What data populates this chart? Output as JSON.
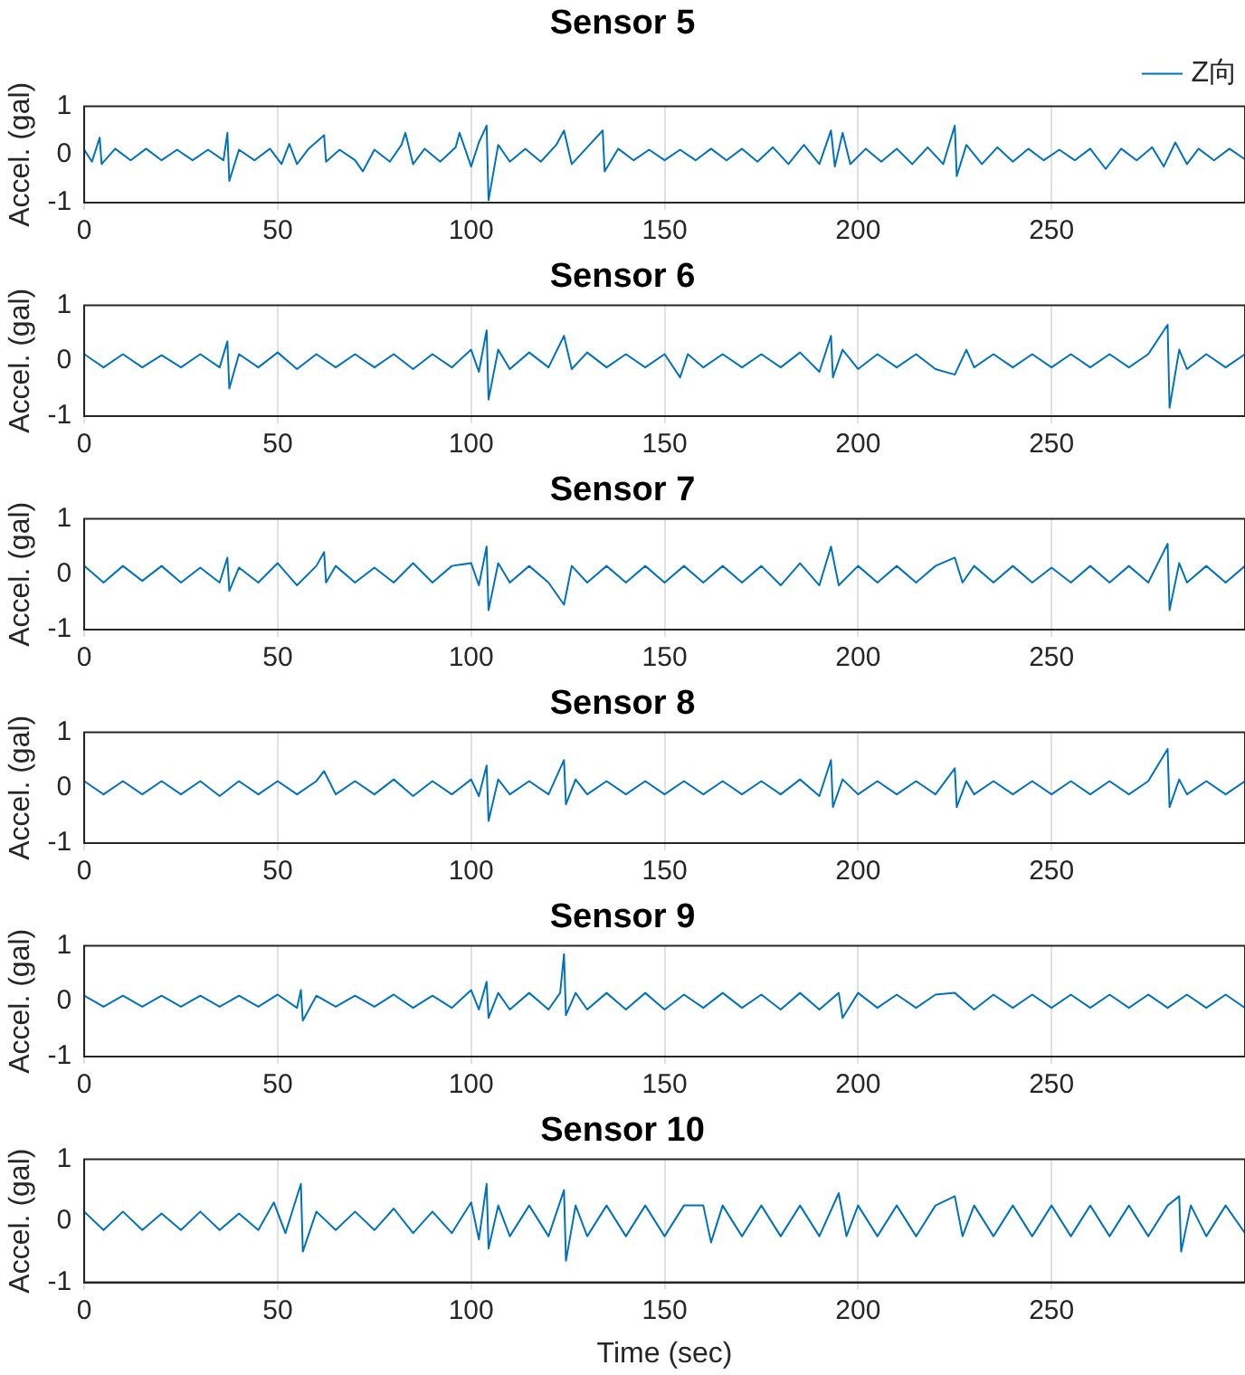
{
  "chart_data": [
    {
      "type": "line",
      "title": "Sensor 5",
      "ylabel": "Accel. (gal)",
      "xlim": [
        0,
        300
      ],
      "ylim": [
        -1,
        1
      ],
      "xticks": [
        0,
        50,
        100,
        150,
        200,
        250
      ],
      "yticks": [
        -1,
        0,
        1
      ],
      "grid": "x",
      "legend": "top right",
      "x": [
        0,
        2,
        4,
        4.5,
        8,
        12,
        16,
        20,
        24,
        28,
        32,
        36,
        37,
        37.5,
        40,
        44,
        48,
        51,
        53,
        55,
        58,
        62,
        62.5,
        66,
        70,
        72,
        75,
        79,
        82,
        83,
        85,
        88,
        92,
        96,
        97,
        100,
        102,
        104,
        104.5,
        107,
        110,
        114,
        118,
        122,
        124,
        126,
        130,
        134,
        134.5,
        138,
        142,
        146,
        150,
        154,
        158,
        162,
        166,
        170,
        174,
        178,
        182,
        186,
        190,
        193,
        194,
        196,
        198,
        202,
        206,
        210,
        214,
        218,
        222,
        225,
        225.5,
        228,
        232,
        236,
        240,
        244,
        248,
        252,
        256,
        260,
        264,
        268,
        272,
        276,
        279,
        282,
        285,
        288,
        292,
        296,
        300
      ],
      "series": [
        {
          "name": "Z向",
          "color": "#0072bd",
          "values": [
            0.1,
            -0.15,
            0.35,
            -0.2,
            0.12,
            -0.12,
            0.12,
            -0.12,
            0.1,
            -0.12,
            0.1,
            -0.12,
            0.45,
            -0.55,
            0.1,
            -0.12,
            0.12,
            -0.2,
            0.22,
            -0.2,
            0.12,
            0.4,
            -0.15,
            0.1,
            -0.12,
            -0.35,
            0.1,
            -0.15,
            0.2,
            0.45,
            -0.2,
            0.12,
            -0.15,
            0.15,
            0.45,
            -0.25,
            0.25,
            0.6,
            -0.95,
            0.2,
            -0.15,
            0.12,
            -0.15,
            0.2,
            0.5,
            -0.2,
            0.15,
            0.5,
            -0.35,
            0.12,
            -0.12,
            0.1,
            -0.12,
            0.1,
            -0.12,
            0.12,
            -0.12,
            0.12,
            -0.15,
            0.15,
            -0.2,
            0.2,
            -0.2,
            0.5,
            -0.25,
            0.45,
            -0.2,
            0.12,
            -0.15,
            0.12,
            -0.2,
            0.15,
            -0.2,
            0.6,
            -0.45,
            0.2,
            -0.2,
            0.15,
            -0.15,
            0.12,
            -0.12,
            0.1,
            -0.12,
            0.12,
            -0.3,
            0.12,
            -0.12,
            0.15,
            -0.25,
            0.25,
            -0.2,
            0.12,
            -0.12,
            0.12,
            -0.1
          ]
        }
      ]
    },
    {
      "type": "line",
      "title": "Sensor 6",
      "ylabel": "Accel. (gal)",
      "xlim": [
        0,
        300
      ],
      "ylim": [
        -1,
        1
      ],
      "xticks": [
        0,
        50,
        100,
        150,
        200,
        250
      ],
      "yticks": [
        -1,
        0,
        1
      ],
      "grid": "x",
      "x": [
        0,
        5,
        10,
        15,
        20,
        25,
        30,
        35,
        37,
        37.5,
        40,
        45,
        50,
        55,
        60,
        65,
        70,
        75,
        80,
        85,
        90,
        95,
        100,
        102,
        104,
        104.5,
        107,
        110,
        115,
        120,
        124,
        126,
        130,
        135,
        140,
        145,
        150,
        154,
        156,
        160,
        165,
        170,
        175,
        180,
        185,
        190,
        193,
        193.5,
        196,
        200,
        205,
        210,
        215,
        220,
        225,
        228,
        230,
        235,
        240,
        245,
        250,
        255,
        260,
        265,
        270,
        275,
        280,
        280.5,
        283,
        285,
        290,
        295,
        300
      ],
      "series": [
        {
          "color": "#0072bd",
          "values": [
            0.12,
            -0.12,
            0.12,
            -0.12,
            0.1,
            -0.12,
            0.12,
            -0.12,
            0.35,
            -0.5,
            0.12,
            -0.12,
            0.15,
            -0.15,
            0.12,
            -0.12,
            0.12,
            -0.12,
            0.12,
            -0.15,
            0.12,
            -0.12,
            0.2,
            -0.2,
            0.55,
            -0.7,
            0.2,
            -0.15,
            0.15,
            -0.12,
            0.45,
            -0.15,
            0.15,
            -0.12,
            0.12,
            -0.12,
            0.12,
            -0.3,
            0.12,
            -0.12,
            0.12,
            -0.12,
            0.12,
            -0.12,
            0.15,
            -0.2,
            0.45,
            -0.3,
            0.2,
            -0.15,
            0.12,
            -0.12,
            0.12,
            -0.15,
            -0.25,
            0.2,
            -0.12,
            0.12,
            -0.12,
            0.12,
            -0.12,
            0.12,
            -0.12,
            0.12,
            -0.12,
            0.12,
            0.65,
            -0.85,
            0.2,
            -0.15,
            0.12,
            -0.12,
            0.12
          ]
        }
      ]
    },
    {
      "type": "line",
      "title": "Sensor 7",
      "ylabel": "Accel. (gal)",
      "xlim": [
        0,
        300
      ],
      "ylim": [
        -1,
        1
      ],
      "xticks": [
        0,
        50,
        100,
        150,
        200,
        250
      ],
      "yticks": [
        -1,
        0,
        1
      ],
      "grid": "x",
      "x": [
        0,
        5,
        10,
        15,
        20,
        25,
        30,
        35,
        37,
        37.5,
        40,
        45,
        50,
        55,
        60,
        62,
        62.5,
        65,
        70,
        75,
        80,
        85,
        90,
        95,
        100,
        102,
        104,
        104.5,
        107,
        110,
        115,
        120,
        124,
        126,
        130,
        135,
        140,
        145,
        150,
        155,
        160,
        165,
        170,
        175,
        180,
        185,
        190,
        193,
        195,
        200,
        205,
        210,
        215,
        220,
        225,
        227,
        230,
        235,
        240,
        245,
        250,
        255,
        260,
        265,
        270,
        275,
        280,
        280.5,
        283,
        285,
        290,
        295,
        300
      ],
      "series": [
        {
          "color": "#0072bd",
          "values": [
            0.15,
            -0.15,
            0.15,
            -0.12,
            0.15,
            -0.15,
            0.12,
            -0.15,
            0.3,
            -0.3,
            0.12,
            -0.15,
            0.2,
            -0.2,
            0.15,
            0.4,
            -0.15,
            0.15,
            -0.15,
            0.12,
            -0.15,
            0.2,
            -0.15,
            0.15,
            0.2,
            -0.2,
            0.5,
            -0.65,
            0.2,
            -0.15,
            0.15,
            -0.15,
            -0.55,
            0.15,
            -0.15,
            0.15,
            -0.15,
            0.15,
            -0.15,
            0.15,
            -0.15,
            0.15,
            -0.15,
            0.15,
            -0.2,
            0.2,
            -0.2,
            0.5,
            -0.2,
            0.15,
            -0.15,
            0.15,
            -0.15,
            0.15,
            0.3,
            -0.15,
            0.15,
            -0.15,
            0.15,
            -0.15,
            0.12,
            -0.15,
            0.15,
            -0.15,
            0.15,
            -0.15,
            0.55,
            -0.65,
            0.2,
            -0.15,
            0.15,
            -0.15,
            0.15
          ]
        }
      ]
    },
    {
      "type": "line",
      "title": "Sensor 8",
      "ylabel": "Accel. (gal)",
      "xlim": [
        0,
        300
      ],
      "ylim": [
        -1,
        1
      ],
      "xticks": [
        0,
        50,
        100,
        150,
        200,
        250
      ],
      "yticks": [
        -1,
        0,
        1
      ],
      "grid": "x",
      "x": [
        0,
        5,
        10,
        15,
        20,
        25,
        30,
        35,
        40,
        45,
        50,
        55,
        60,
        62,
        65,
        70,
        75,
        80,
        85,
        90,
        95,
        100,
        102,
        104,
        104.5,
        107,
        110,
        115,
        120,
        124,
        124.5,
        127,
        130,
        135,
        140,
        145,
        150,
        155,
        160,
        165,
        170,
        175,
        180,
        185,
        190,
        193,
        193.5,
        196,
        200,
        205,
        210,
        215,
        220,
        225,
        225.5,
        228,
        230,
        235,
        240,
        245,
        250,
        255,
        260,
        265,
        270,
        275,
        280,
        280.5,
        283,
        285,
        290,
        295,
        300
      ],
      "series": [
        {
          "color": "#0072bd",
          "values": [
            0.12,
            -0.12,
            0.12,
            -0.12,
            0.12,
            -0.12,
            0.12,
            -0.15,
            0.12,
            -0.12,
            0.12,
            -0.12,
            0.12,
            0.3,
            -0.12,
            0.12,
            -0.12,
            0.15,
            -0.15,
            0.12,
            -0.12,
            0.15,
            -0.15,
            0.4,
            -0.6,
            0.15,
            -0.12,
            0.12,
            -0.12,
            0.5,
            -0.3,
            0.15,
            -0.12,
            0.12,
            -0.12,
            0.12,
            -0.12,
            0.12,
            -0.12,
            0.12,
            -0.12,
            0.12,
            -0.12,
            0.15,
            -0.15,
            0.5,
            -0.35,
            0.15,
            -0.12,
            0.12,
            -0.12,
            0.12,
            -0.12,
            0.35,
            -0.35,
            0.12,
            -0.12,
            0.12,
            -0.12,
            0.12,
            -0.12,
            0.12,
            -0.12,
            0.12,
            -0.12,
            0.12,
            0.7,
            -0.35,
            0.15,
            -0.12,
            0.12,
            -0.12,
            0.12
          ]
        }
      ]
    },
    {
      "type": "line",
      "title": "Sensor 9",
      "ylabel": "Accel. (gal)",
      "xlim": [
        0,
        300
      ],
      "ylim": [
        -1,
        1
      ],
      "xticks": [
        0,
        50,
        100,
        150,
        200,
        250
      ],
      "yticks": [
        -1,
        0,
        1
      ],
      "grid": "x",
      "x": [
        0,
        5,
        10,
        15,
        20,
        25,
        30,
        35,
        40,
        45,
        50,
        55,
        56,
        56.5,
        60,
        65,
        70,
        75,
        80,
        85,
        90,
        95,
        100,
        102,
        104,
        104.5,
        107,
        110,
        115,
        120,
        123,
        124,
        124.5,
        127,
        130,
        135,
        140,
        145,
        150,
        155,
        160,
        165,
        170,
        175,
        180,
        185,
        190,
        195,
        196,
        200,
        205,
        210,
        215,
        220,
        225,
        230,
        235,
        240,
        245,
        250,
        255,
        260,
        265,
        270,
        275,
        280,
        285,
        290,
        295,
        300
      ],
      "series": [
        {
          "color": "#0072bd",
          "values": [
            0.1,
            -0.1,
            0.1,
            -0.1,
            0.1,
            -0.1,
            0.1,
            -0.1,
            0.1,
            -0.1,
            0.12,
            -0.12,
            0.2,
            -0.35,
            0.1,
            -0.1,
            0.1,
            -0.1,
            0.12,
            -0.12,
            0.1,
            -0.12,
            0.2,
            -0.15,
            0.35,
            -0.3,
            0.15,
            -0.15,
            0.15,
            -0.15,
            0.15,
            0.85,
            -0.25,
            0.15,
            -0.15,
            0.15,
            -0.15,
            0.15,
            -0.15,
            0.12,
            -0.12,
            0.15,
            -0.12,
            0.12,
            -0.15,
            0.15,
            -0.15,
            0.15,
            -0.3,
            0.15,
            -0.12,
            0.12,
            -0.12,
            0.12,
            0.15,
            -0.15,
            0.12,
            -0.12,
            0.12,
            -0.12,
            0.12,
            -0.12,
            0.12,
            -0.12,
            0.12,
            -0.12,
            0.12,
            -0.12,
            0.12,
            -0.12
          ]
        }
      ]
    },
    {
      "type": "line",
      "title": "Sensor 10",
      "ylabel": "Accel. (gal)",
      "xlabel": "Time (sec)",
      "xlim": [
        0,
        300
      ],
      "ylim": [
        -1,
        1
      ],
      "xticks": [
        0,
        50,
        100,
        150,
        200,
        250
      ],
      "yticks": [
        -1,
        0,
        1
      ],
      "grid": "x",
      "x": [
        0,
        5,
        10,
        15,
        20,
        25,
        30,
        35,
        40,
        45,
        49,
        52,
        56,
        56.5,
        60,
        65,
        70,
        75,
        80,
        85,
        90,
        95,
        100,
        102,
        104,
        104.5,
        107,
        110,
        115,
        120,
        124,
        124.5,
        127,
        130,
        135,
        140,
        145,
        150,
        155,
        160,
        162,
        165,
        170,
        175,
        180,
        185,
        190,
        195,
        197,
        200,
        205,
        210,
        215,
        220,
        225,
        227,
        230,
        235,
        240,
        245,
        250,
        255,
        260,
        265,
        270,
        275,
        280,
        283,
        283.5,
        286,
        290,
        295,
        300
      ],
      "series": [
        {
          "color": "#0072bd",
          "values": [
            0.15,
            -0.15,
            0.15,
            -0.15,
            0.12,
            -0.15,
            0.15,
            -0.15,
            0.12,
            -0.15,
            0.3,
            -0.2,
            0.6,
            -0.5,
            0.15,
            -0.15,
            0.15,
            -0.15,
            0.2,
            -0.2,
            0.15,
            -0.2,
            0.3,
            -0.3,
            0.6,
            -0.45,
            0.25,
            -0.25,
            0.25,
            -0.25,
            0.5,
            -0.65,
            0.25,
            -0.25,
            0.25,
            -0.25,
            0.25,
            -0.25,
            0.25,
            0.25,
            -0.35,
            0.25,
            -0.25,
            0.25,
            -0.25,
            0.25,
            -0.25,
            0.45,
            -0.25,
            0.25,
            -0.25,
            0.25,
            -0.25,
            0.25,
            0.4,
            -0.25,
            0.25,
            -0.25,
            0.25,
            -0.25,
            0.25,
            -0.25,
            0.25,
            -0.25,
            0.25,
            -0.25,
            0.25,
            0.4,
            -0.5,
            0.25,
            -0.25,
            0.25,
            -0.2
          ]
        }
      ]
    }
  ]
}
